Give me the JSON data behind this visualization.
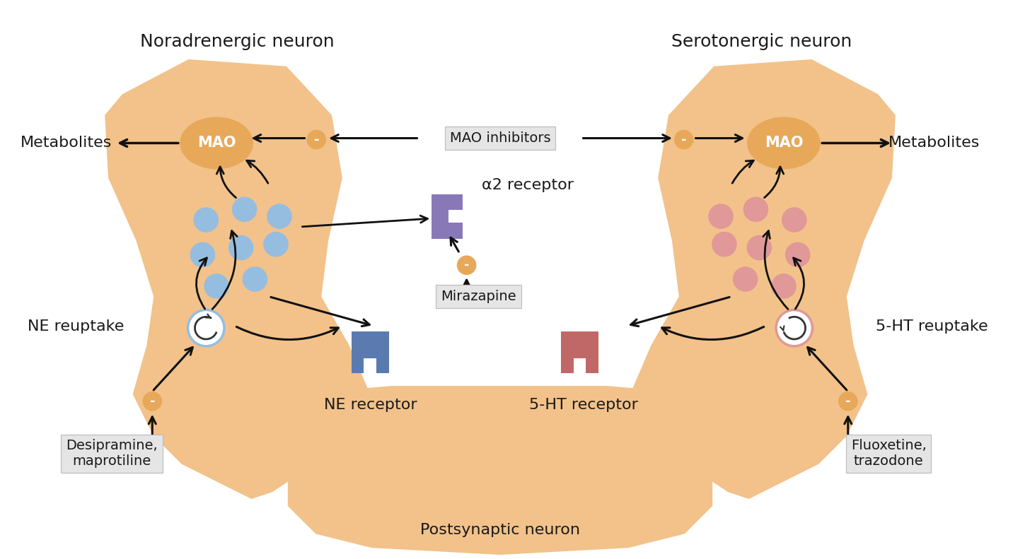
{
  "bg_color": "#ffffff",
  "neuron_fill": "#f2c28a",
  "mao_fill": "#e8a85a",
  "ne_dots_color": "#95bde0",
  "sht_dots_color": "#e09898",
  "ne_receptor_color": "#5a7ab0",
  "sht_receptor_color": "#c06868",
  "alpha2_color": "#8878b8",
  "mao_text": "MAO",
  "label_noradrenergic": "Noradrenergic neuron",
  "label_serotonergic": "Serotonergic neuron",
  "label_mao_inhibitors": "MAO inhibitors",
  "label_metabolites_left": "Metabolites",
  "label_metabolites_right": "Metabolites",
  "label_ne_reuptake": "NE reuptake",
  "label_sht_reuptake": "5-HT reuptake",
  "label_ne_receptor": "NE receptor",
  "label_sht_receptor": "5-HT receptor",
  "label_alpha2": "α2 receptor",
  "label_mirazapine": "Mirazapine",
  "label_desipramine": "Desipramine,\nmaprotiline",
  "label_fluoxetine": "Fluoxetine,\ntrazodone",
  "label_postsynaptic": "Postsynaptic neuron",
  "minus_sign": "-",
  "text_color": "#1a1a1a",
  "font_size_title": 18,
  "font_size_labels": 16,
  "font_size_mao": 14,
  "font_size_boxes": 14
}
